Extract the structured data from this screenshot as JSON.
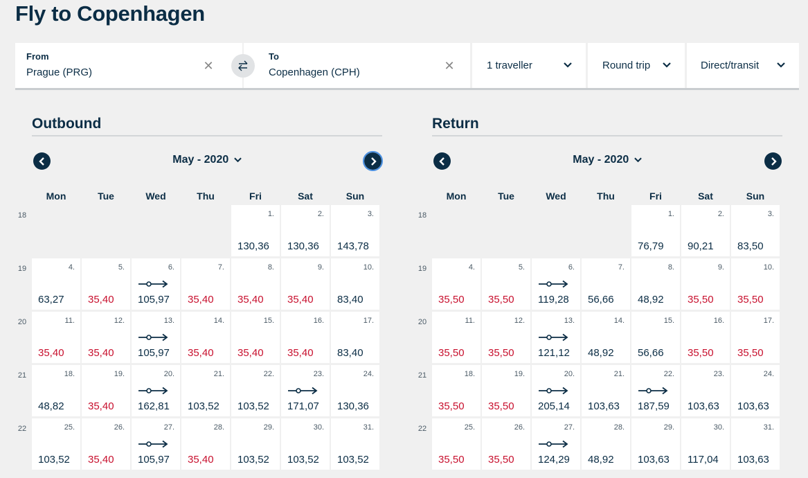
{
  "page": {
    "title": "Fly to Copenhagen"
  },
  "search": {
    "from_label": "From",
    "from_value": "Prague (PRG)",
    "to_label": "To",
    "to_value": "Copenhagen (CPH)",
    "travellers": "1 traveller",
    "trip_type": "Round trip",
    "connection": "Direct/transit"
  },
  "weekdays": [
    "Mon",
    "Tue",
    "Wed",
    "Thu",
    "Fri",
    "Sat",
    "Sun"
  ],
  "weeks": [
    "18",
    "19",
    "20",
    "21",
    "22"
  ],
  "colors": {
    "navy": "#0b2d45",
    "low_fare": "#c8102e",
    "background": "#f0f0f0"
  },
  "outbound": {
    "heading": "Outbound",
    "month": "May - 2020",
    "start_weekday": 4,
    "days": [
      {
        "n": "1.",
        "price": "130,36",
        "low": false,
        "transit": false
      },
      {
        "n": "2.",
        "price": "130,36",
        "low": false,
        "transit": false
      },
      {
        "n": "3.",
        "price": "143,78",
        "low": false,
        "transit": false
      },
      {
        "n": "4.",
        "price": "63,27",
        "low": false,
        "transit": false
      },
      {
        "n": "5.",
        "price": "35,40",
        "low": true,
        "transit": false
      },
      {
        "n": "6.",
        "price": "105,97",
        "low": false,
        "transit": true
      },
      {
        "n": "7.",
        "price": "35,40",
        "low": true,
        "transit": false
      },
      {
        "n": "8.",
        "price": "35,40",
        "low": true,
        "transit": false
      },
      {
        "n": "9.",
        "price": "35,40",
        "low": true,
        "transit": false
      },
      {
        "n": "10.",
        "price": "83,40",
        "low": false,
        "transit": false
      },
      {
        "n": "11.",
        "price": "35,40",
        "low": true,
        "transit": false
      },
      {
        "n": "12.",
        "price": "35,40",
        "low": true,
        "transit": false
      },
      {
        "n": "13.",
        "price": "105,97",
        "low": false,
        "transit": true
      },
      {
        "n": "14.",
        "price": "35,40",
        "low": true,
        "transit": false
      },
      {
        "n": "15.",
        "price": "35,40",
        "low": true,
        "transit": false
      },
      {
        "n": "16.",
        "price": "35,40",
        "low": true,
        "transit": false
      },
      {
        "n": "17.",
        "price": "83,40",
        "low": false,
        "transit": false
      },
      {
        "n": "18.",
        "price": "48,82",
        "low": false,
        "transit": false
      },
      {
        "n": "19.",
        "price": "35,40",
        "low": true,
        "transit": false
      },
      {
        "n": "20.",
        "price": "162,81",
        "low": false,
        "transit": true
      },
      {
        "n": "21.",
        "price": "103,52",
        "low": false,
        "transit": false
      },
      {
        "n": "22.",
        "price": "103,52",
        "low": false,
        "transit": false
      },
      {
        "n": "23.",
        "price": "171,07",
        "low": false,
        "transit": true
      },
      {
        "n": "24.",
        "price": "130,36",
        "low": false,
        "transit": false
      },
      {
        "n": "25.",
        "price": "103,52",
        "low": false,
        "transit": false
      },
      {
        "n": "26.",
        "price": "35,40",
        "low": true,
        "transit": false
      },
      {
        "n": "27.",
        "price": "105,97",
        "low": false,
        "transit": true
      },
      {
        "n": "28.",
        "price": "35,40",
        "low": true,
        "transit": false
      },
      {
        "n": "29.",
        "price": "103,52",
        "low": false,
        "transit": false
      },
      {
        "n": "30.",
        "price": "103,52",
        "low": false,
        "transit": false
      },
      {
        "n": "31.",
        "price": "103,52",
        "low": false,
        "transit": false
      }
    ]
  },
  "return": {
    "heading": "Return",
    "month": "May - 2020",
    "start_weekday": 4,
    "days": [
      {
        "n": "1.",
        "price": "76,79",
        "low": false,
        "transit": false
      },
      {
        "n": "2.",
        "price": "90,21",
        "low": false,
        "transit": false
      },
      {
        "n": "3.",
        "price": "83,50",
        "low": false,
        "transit": false
      },
      {
        "n": "4.",
        "price": "35,50",
        "low": true,
        "transit": false
      },
      {
        "n": "5.",
        "price": "35,50",
        "low": true,
        "transit": false
      },
      {
        "n": "6.",
        "price": "119,28",
        "low": false,
        "transit": true
      },
      {
        "n": "7.",
        "price": "56,66",
        "low": false,
        "transit": false
      },
      {
        "n": "8.",
        "price": "48,92",
        "low": false,
        "transit": false
      },
      {
        "n": "9.",
        "price": "35,50",
        "low": true,
        "transit": false
      },
      {
        "n": "10.",
        "price": "35,50",
        "low": true,
        "transit": false
      },
      {
        "n": "11.",
        "price": "35,50",
        "low": true,
        "transit": false
      },
      {
        "n": "12.",
        "price": "35,50",
        "low": true,
        "transit": false
      },
      {
        "n": "13.",
        "price": "121,12",
        "low": false,
        "transit": true
      },
      {
        "n": "14.",
        "price": "48,92",
        "low": false,
        "transit": false
      },
      {
        "n": "15.",
        "price": "56,66",
        "low": false,
        "transit": false
      },
      {
        "n": "16.",
        "price": "35,50",
        "low": true,
        "transit": false
      },
      {
        "n": "17.",
        "price": "35,50",
        "low": true,
        "transit": false
      },
      {
        "n": "18.",
        "price": "35,50",
        "low": true,
        "transit": false
      },
      {
        "n": "19.",
        "price": "35,50",
        "low": true,
        "transit": false
      },
      {
        "n": "20.",
        "price": "205,14",
        "low": false,
        "transit": true
      },
      {
        "n": "21.",
        "price": "103,63",
        "low": false,
        "transit": false
      },
      {
        "n": "22.",
        "price": "187,59",
        "low": false,
        "transit": true
      },
      {
        "n": "23.",
        "price": "103,63",
        "low": false,
        "transit": false
      },
      {
        "n": "24.",
        "price": "103,63",
        "low": false,
        "transit": false
      },
      {
        "n": "25.",
        "price": "35,50",
        "low": true,
        "transit": false
      },
      {
        "n": "26.",
        "price": "35,50",
        "low": true,
        "transit": false
      },
      {
        "n": "27.",
        "price": "124,29",
        "low": false,
        "transit": true
      },
      {
        "n": "28.",
        "price": "48,92",
        "low": false,
        "transit": false
      },
      {
        "n": "29.",
        "price": "103,63",
        "low": false,
        "transit": false
      },
      {
        "n": "30.",
        "price": "117,04",
        "low": false,
        "transit": false
      },
      {
        "n": "31.",
        "price": "103,63",
        "low": false,
        "transit": false
      }
    ]
  }
}
